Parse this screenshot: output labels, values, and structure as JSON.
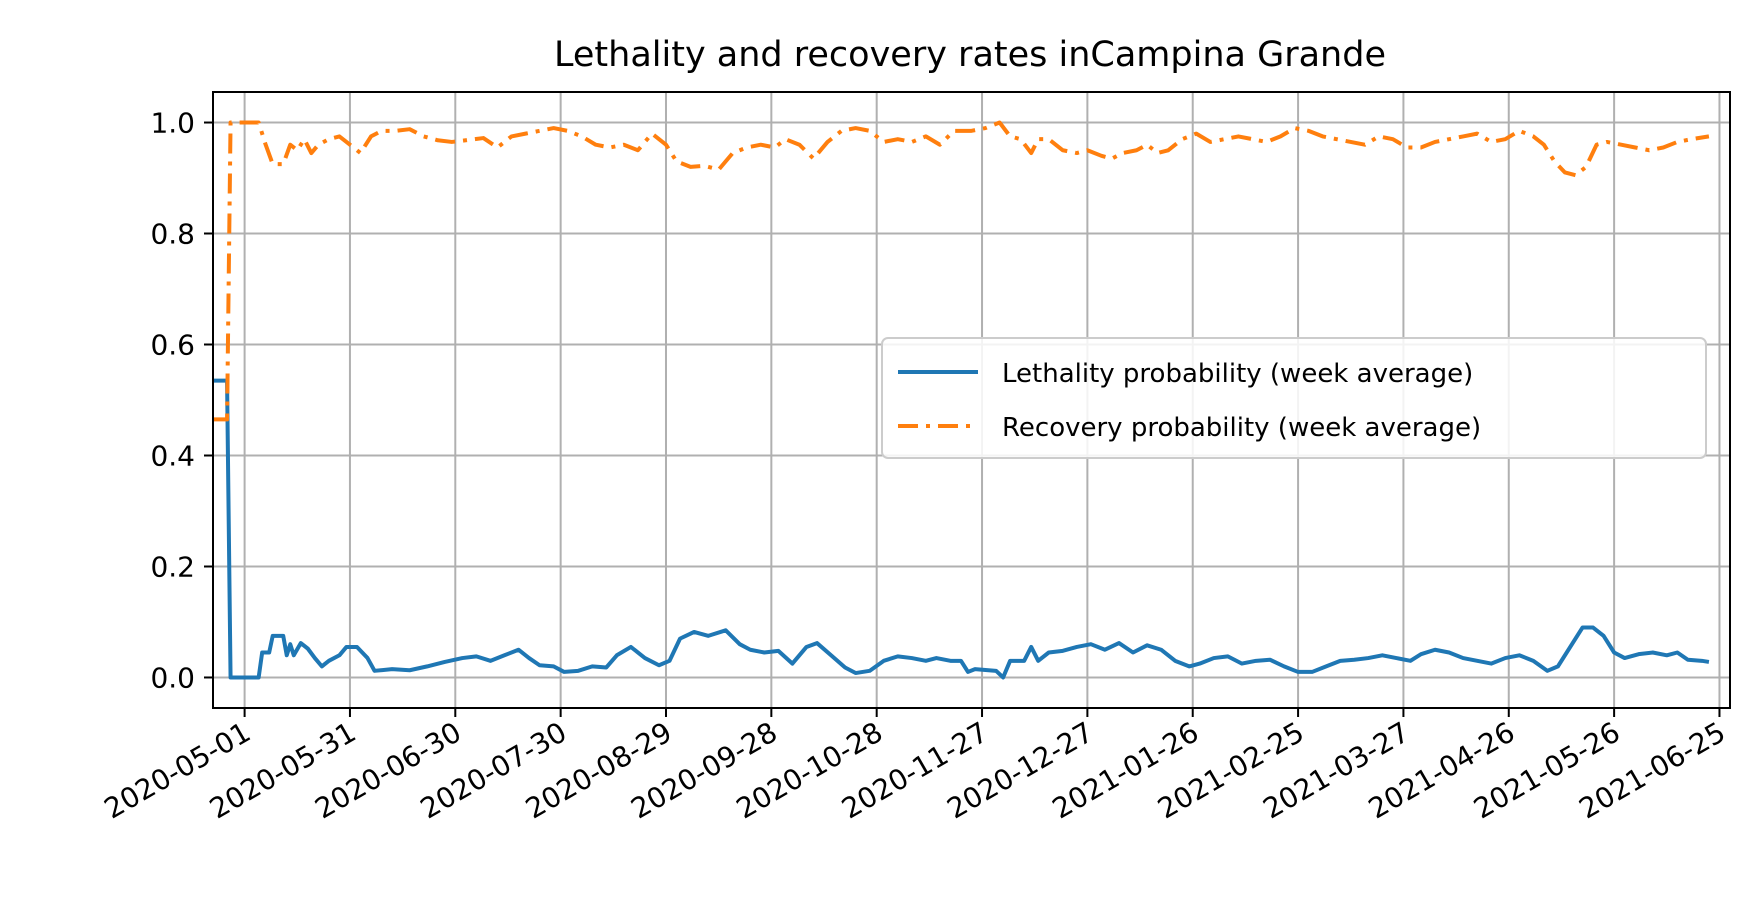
{
  "chart_data": {
    "type": "line",
    "title": "Lethality and recovery rates inCampina Grande",
    "xlabel": "",
    "ylabel": "",
    "x_type": "date",
    "xlim": [
      "2020-04-22",
      "2021-06-28"
    ],
    "ylim": [
      -0.055,
      1.055
    ],
    "x_ticks": [
      "2020-05-01",
      "2020-05-31",
      "2020-06-30",
      "2020-07-30",
      "2020-08-29",
      "2020-09-28",
      "2020-10-28",
      "2020-11-27",
      "2020-12-27",
      "2021-01-26",
      "2021-02-25",
      "2021-03-27",
      "2021-04-26",
      "2021-05-26",
      "2021-06-25"
    ],
    "y_ticks": [
      "0.0",
      "0.2",
      "0.4",
      "0.6",
      "0.8",
      "1.0"
    ],
    "grid": true,
    "legend_position": "center-right",
    "series": [
      {
        "name": "Lethality probability (week average)",
        "color": "#1f77b4",
        "style": "solid",
        "points": [
          [
            "2020-04-22",
            0.535
          ],
          [
            "2020-04-26",
            0.535
          ],
          [
            "2020-04-27",
            0.0
          ],
          [
            "2020-05-05",
            0.0
          ],
          [
            "2020-05-06",
            0.045
          ],
          [
            "2020-05-08",
            0.045
          ],
          [
            "2020-05-09",
            0.075
          ],
          [
            "2020-05-12",
            0.075
          ],
          [
            "2020-05-13",
            0.04
          ],
          [
            "2020-05-14",
            0.06
          ],
          [
            "2020-05-15",
            0.04
          ],
          [
            "2020-05-17",
            0.062
          ],
          [
            "2020-05-19",
            0.052
          ],
          [
            "2020-05-21",
            0.035
          ],
          [
            "2020-05-23",
            0.02
          ],
          [
            "2020-05-25",
            0.03
          ],
          [
            "2020-05-28",
            0.04
          ],
          [
            "2020-05-30",
            0.055
          ],
          [
            "2020-06-02",
            0.055
          ],
          [
            "2020-06-05",
            0.035
          ],
          [
            "2020-06-07",
            0.012
          ],
          [
            "2020-06-12",
            0.015
          ],
          [
            "2020-06-17",
            0.013
          ],
          [
            "2020-06-22",
            0.02
          ],
          [
            "2020-06-27",
            0.028
          ],
          [
            "2020-07-02",
            0.035
          ],
          [
            "2020-07-06",
            0.038
          ],
          [
            "2020-07-10",
            0.03
          ],
          [
            "2020-07-14",
            0.04
          ],
          [
            "2020-07-18",
            0.05
          ],
          [
            "2020-07-21",
            0.035
          ],
          [
            "2020-07-24",
            0.022
          ],
          [
            "2020-07-28",
            0.02
          ],
          [
            "2020-07-31",
            0.01
          ],
          [
            "2020-08-04",
            0.012
          ],
          [
            "2020-08-08",
            0.02
          ],
          [
            "2020-08-12",
            0.018
          ],
          [
            "2020-08-15",
            0.04
          ],
          [
            "2020-08-19",
            0.055
          ],
          [
            "2020-08-23",
            0.035
          ],
          [
            "2020-08-27",
            0.022
          ],
          [
            "2020-08-30",
            0.03
          ],
          [
            "2020-09-02",
            0.07
          ],
          [
            "2020-09-06",
            0.082
          ],
          [
            "2020-09-10",
            0.075
          ],
          [
            "2020-09-15",
            0.085
          ],
          [
            "2020-09-19",
            0.06
          ],
          [
            "2020-09-22",
            0.05
          ],
          [
            "2020-09-26",
            0.045
          ],
          [
            "2020-09-30",
            0.048
          ],
          [
            "2020-10-04",
            0.025
          ],
          [
            "2020-10-08",
            0.055
          ],
          [
            "2020-10-11",
            0.062
          ],
          [
            "2020-10-15",
            0.04
          ],
          [
            "2020-10-19",
            0.018
          ],
          [
            "2020-10-22",
            0.008
          ],
          [
            "2020-10-26",
            0.012
          ],
          [
            "2020-10-30",
            0.03
          ],
          [
            "2020-11-03",
            0.038
          ],
          [
            "2020-11-07",
            0.035
          ],
          [
            "2020-11-11",
            0.03
          ],
          [
            "2020-11-14",
            0.035
          ],
          [
            "2020-11-18",
            0.03
          ],
          [
            "2020-11-21",
            0.03
          ],
          [
            "2020-11-23",
            0.01
          ],
          [
            "2020-11-25",
            0.015
          ],
          [
            "2020-12-01",
            0.012
          ],
          [
            "2020-12-03",
            0.0
          ],
          [
            "2020-12-05",
            0.03
          ],
          [
            "2020-12-09",
            0.03
          ],
          [
            "2020-12-11",
            0.055
          ],
          [
            "2020-12-13",
            0.03
          ],
          [
            "2020-12-16",
            0.045
          ],
          [
            "2020-12-20",
            0.048
          ],
          [
            "2020-12-24",
            0.055
          ],
          [
            "2020-12-28",
            0.06
          ],
          [
            "2021-01-01",
            0.05
          ],
          [
            "2021-01-05",
            0.062
          ],
          [
            "2021-01-09",
            0.045
          ],
          [
            "2021-01-13",
            0.058
          ],
          [
            "2021-01-17",
            0.05
          ],
          [
            "2021-01-21",
            0.03
          ],
          [
            "2021-01-25",
            0.02
          ],
          [
            "2021-01-28",
            0.025
          ],
          [
            "2021-02-01",
            0.035
          ],
          [
            "2021-02-05",
            0.038
          ],
          [
            "2021-02-09",
            0.025
          ],
          [
            "2021-02-13",
            0.03
          ],
          [
            "2021-02-17",
            0.032
          ],
          [
            "2021-02-21",
            0.02
          ],
          [
            "2021-02-25",
            0.01
          ],
          [
            "2021-03-01",
            0.01
          ],
          [
            "2021-03-05",
            0.02
          ],
          [
            "2021-03-09",
            0.03
          ],
          [
            "2021-03-13",
            0.032
          ],
          [
            "2021-03-17",
            0.035
          ],
          [
            "2021-03-21",
            0.04
          ],
          [
            "2021-03-25",
            0.035
          ],
          [
            "2021-03-29",
            0.03
          ],
          [
            "2021-04-01",
            0.042
          ],
          [
            "2021-04-05",
            0.05
          ],
          [
            "2021-04-09",
            0.045
          ],
          [
            "2021-04-13",
            0.035
          ],
          [
            "2021-04-17",
            0.03
          ],
          [
            "2021-04-21",
            0.025
          ],
          [
            "2021-04-25",
            0.035
          ],
          [
            "2021-04-29",
            0.04
          ],
          [
            "2021-05-03",
            0.03
          ],
          [
            "2021-05-07",
            0.012
          ],
          [
            "2021-05-10",
            0.02
          ],
          [
            "2021-05-14",
            0.06
          ],
          [
            "2021-05-17",
            0.09
          ],
          [
            "2021-05-20",
            0.09
          ],
          [
            "2021-05-23",
            0.075
          ],
          [
            "2021-05-26",
            0.045
          ],
          [
            "2021-05-29",
            0.035
          ],
          [
            "2021-06-02",
            0.042
          ],
          [
            "2021-06-06",
            0.045
          ],
          [
            "2021-06-10",
            0.04
          ],
          [
            "2021-06-13",
            0.045
          ],
          [
            "2021-06-16",
            0.032
          ],
          [
            "2021-06-20",
            0.03
          ],
          [
            "2021-06-22",
            0.028
          ]
        ]
      },
      {
        "name": "Recovery probability (week average)",
        "color": "#ff7f0e",
        "style": "dashdot",
        "points": [
          [
            "2020-04-22",
            0.465
          ],
          [
            "2020-04-26",
            0.465
          ],
          [
            "2020-04-27",
            1.0
          ],
          [
            "2020-05-05",
            1.0
          ],
          [
            "2020-05-07",
            0.96
          ],
          [
            "2020-05-09",
            0.925
          ],
          [
            "2020-05-12",
            0.925
          ],
          [
            "2020-05-14",
            0.96
          ],
          [
            "2020-05-16",
            0.95
          ],
          [
            "2020-05-18",
            0.97
          ],
          [
            "2020-05-20",
            0.945
          ],
          [
            "2020-05-22",
            0.96
          ],
          [
            "2020-05-25",
            0.97
          ],
          [
            "2020-05-28",
            0.975
          ],
          [
            "2020-05-31",
            0.96
          ],
          [
            "2020-06-03",
            0.945
          ],
          [
            "2020-06-06",
            0.975
          ],
          [
            "2020-06-09",
            0.985
          ],
          [
            "2020-06-13",
            0.985
          ],
          [
            "2020-06-17",
            0.988
          ],
          [
            "2020-06-21",
            0.975
          ],
          [
            "2020-06-25",
            0.968
          ],
          [
            "2020-06-29",
            0.965
          ],
          [
            "2020-07-03",
            0.968
          ],
          [
            "2020-07-08",
            0.972
          ],
          [
            "2020-07-12",
            0.955
          ],
          [
            "2020-07-16",
            0.975
          ],
          [
            "2020-07-20",
            0.98
          ],
          [
            "2020-07-24",
            0.985
          ],
          [
            "2020-07-28",
            0.99
          ],
          [
            "2020-08-01",
            0.985
          ],
          [
            "2020-08-05",
            0.975
          ],
          [
            "2020-08-09",
            0.96
          ],
          [
            "2020-08-13",
            0.955
          ],
          [
            "2020-08-17",
            0.96
          ],
          [
            "2020-08-21",
            0.95
          ],
          [
            "2020-08-25",
            0.98
          ],
          [
            "2020-08-29",
            0.96
          ],
          [
            "2020-09-01",
            0.93
          ],
          [
            "2020-09-05",
            0.92
          ],
          [
            "2020-09-09",
            0.922
          ],
          [
            "2020-09-13",
            0.915
          ],
          [
            "2020-09-17",
            0.945
          ],
          [
            "2020-09-21",
            0.955
          ],
          [
            "2020-09-25",
            0.96
          ],
          [
            "2020-09-29",
            0.955
          ],
          [
            "2020-10-02",
            0.97
          ],
          [
            "2020-10-06",
            0.96
          ],
          [
            "2020-10-10",
            0.935
          ],
          [
            "2020-10-14",
            0.965
          ],
          [
            "2020-10-18",
            0.985
          ],
          [
            "2020-10-22",
            0.99
          ],
          [
            "2020-10-26",
            0.985
          ],
          [
            "2020-10-30",
            0.965
          ],
          [
            "2020-11-03",
            0.97
          ],
          [
            "2020-11-07",
            0.965
          ],
          [
            "2020-11-11",
            0.975
          ],
          [
            "2020-11-15",
            0.96
          ],
          [
            "2020-11-19",
            0.985
          ],
          [
            "2020-11-24",
            0.985
          ],
          [
            "2020-11-28",
            0.99
          ],
          [
            "2020-12-02",
            1.0
          ],
          [
            "2020-12-05",
            0.975
          ],
          [
            "2020-12-08",
            0.97
          ],
          [
            "2020-12-11",
            0.945
          ],
          [
            "2020-12-13",
            0.97
          ],
          [
            "2020-12-16",
            0.97
          ],
          [
            "2020-12-20",
            0.95
          ],
          [
            "2020-12-24",
            0.945
          ],
          [
            "2020-12-27",
            0.95
          ],
          [
            "2020-12-31",
            0.94
          ],
          [
            "2021-01-03",
            0.935
          ],
          [
            "2021-01-06",
            0.945
          ],
          [
            "2021-01-10",
            0.95
          ],
          [
            "2021-01-13",
            0.96
          ],
          [
            "2021-01-16",
            0.945
          ],
          [
            "2021-01-19",
            0.95
          ],
          [
            "2021-01-23",
            0.97
          ],
          [
            "2021-01-27",
            0.98
          ],
          [
            "2021-01-31",
            0.965
          ],
          [
            "2021-02-04",
            0.97
          ],
          [
            "2021-02-08",
            0.975
          ],
          [
            "2021-02-12",
            0.97
          ],
          [
            "2021-02-16",
            0.965
          ],
          [
            "2021-02-20",
            0.975
          ],
          [
            "2021-02-24",
            0.99
          ],
          [
            "2021-02-28",
            0.985
          ],
          [
            "2021-03-04",
            0.975
          ],
          [
            "2021-03-08",
            0.97
          ],
          [
            "2021-03-12",
            0.965
          ],
          [
            "2021-03-16",
            0.96
          ],
          [
            "2021-03-20",
            0.975
          ],
          [
            "2021-03-24",
            0.97
          ],
          [
            "2021-03-28",
            0.955
          ],
          [
            "2021-04-01",
            0.955
          ],
          [
            "2021-04-05",
            0.965
          ],
          [
            "2021-04-09",
            0.97
          ],
          [
            "2021-04-13",
            0.975
          ],
          [
            "2021-04-17",
            0.98
          ],
          [
            "2021-04-21",
            0.965
          ],
          [
            "2021-04-25",
            0.97
          ],
          [
            "2021-04-29",
            0.985
          ],
          [
            "2021-05-03",
            0.975
          ],
          [
            "2021-05-06",
            0.96
          ],
          [
            "2021-05-09",
            0.93
          ],
          [
            "2021-05-12",
            0.91
          ],
          [
            "2021-05-15",
            0.905
          ],
          [
            "2021-05-18",
            0.92
          ],
          [
            "2021-05-21",
            0.96
          ],
          [
            "2021-05-24",
            0.965
          ],
          [
            "2021-05-28",
            0.96
          ],
          [
            "2021-06-01",
            0.955
          ],
          [
            "2021-06-05",
            0.95
          ],
          [
            "2021-06-09",
            0.955
          ],
          [
            "2021-06-13",
            0.965
          ],
          [
            "2021-06-17",
            0.97
          ],
          [
            "2021-06-22",
            0.975
          ]
        ]
      }
    ]
  }
}
